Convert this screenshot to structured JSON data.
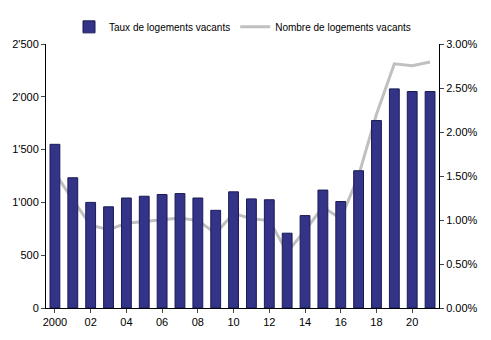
{
  "chart_data": {
    "type": "bar",
    "categories": [
      "2000",
      null,
      "02",
      null,
      "04",
      null,
      "06",
      null,
      "08",
      null,
      "10",
      null,
      "12",
      null,
      "14",
      null,
      "16",
      null,
      "18",
      null,
      "20",
      null
    ],
    "series": [
      {
        "name": "Taux de logements vacants",
        "type": "bar",
        "axis": "y2",
        "color": "#333387",
        "values": [
          1.86,
          1.48,
          1.2,
          1.15,
          1.25,
          1.27,
          1.29,
          1.3,
          1.25,
          1.11,
          1.32,
          1.24,
          1.23,
          0.85,
          1.05,
          1.34,
          1.21,
          1.56,
          2.13,
          2.49,
          2.46,
          2.46
        ]
      },
      {
        "name": "Nombre de logements vacants",
        "type": "line",
        "color": "#c0c0c0",
        "values": [
          1280,
          1024,
          785,
          742,
          802,
          819,
          836,
          853,
          828,
          708,
          896,
          845,
          828,
          529,
          734,
          956,
          845,
          1254,
          1835,
          2312,
          2295,
          2330
        ]
      }
    ],
    "ylim": [
      0,
      2500
    ],
    "yticks": [
      0,
      500,
      {
        "value": 1000,
        "label": "1'000"
      },
      {
        "value": 1500,
        "label": "1'500"
      },
      {
        "value": 2000,
        "label": "2'000"
      },
      {
        "value": 2500,
        "label": "2'500"
      }
    ],
    "y2lim": [
      0,
      3
    ],
    "y2ticks": [
      {
        "value": 0,
        "label": "0.00%"
      },
      {
        "value": 0.5,
        "label": "0.50%"
      },
      {
        "value": 1,
        "label": "1.00%"
      },
      {
        "value": 1.5,
        "label": "1.50%"
      },
      {
        "value": 2,
        "label": "2.00%"
      },
      {
        "value": 2.5,
        "label": "2.50%"
      },
      {
        "value": 3,
        "label": "3.00%"
      }
    ],
    "grid": false,
    "legend": "top"
  }
}
